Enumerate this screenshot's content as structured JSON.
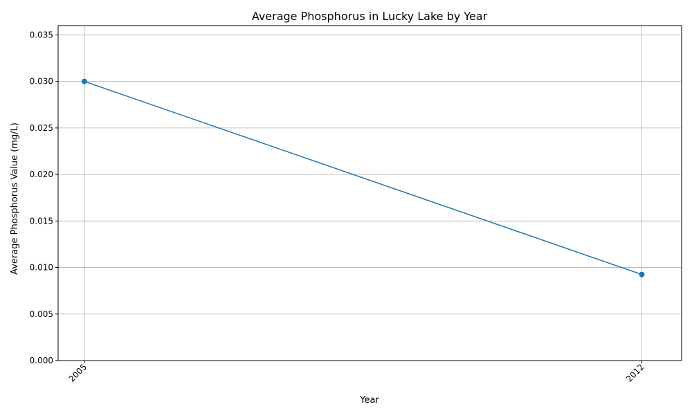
{
  "chart_data": {
    "type": "line",
    "title": "Average Phosphorus in Lucky Lake by Year",
    "xlabel": "Year",
    "ylabel": "Average Phosphorus Value (mg/L)",
    "x": [
      "2005",
      "2012"
    ],
    "series": [
      {
        "values": [
          0.03,
          0.00925
        ],
        "color": "#1f77b4",
        "marker": "circle"
      }
    ],
    "xlim": [
      2004.67,
      2012.5
    ],
    "ylim": [
      0,
      0.036
    ],
    "yticks": [
      "0.000",
      "0.005",
      "0.010",
      "0.015",
      "0.020",
      "0.025",
      "0.030",
      "0.035"
    ],
    "xticks": [
      "2005",
      "2012"
    ],
    "grid": true,
    "legend": "none"
  }
}
